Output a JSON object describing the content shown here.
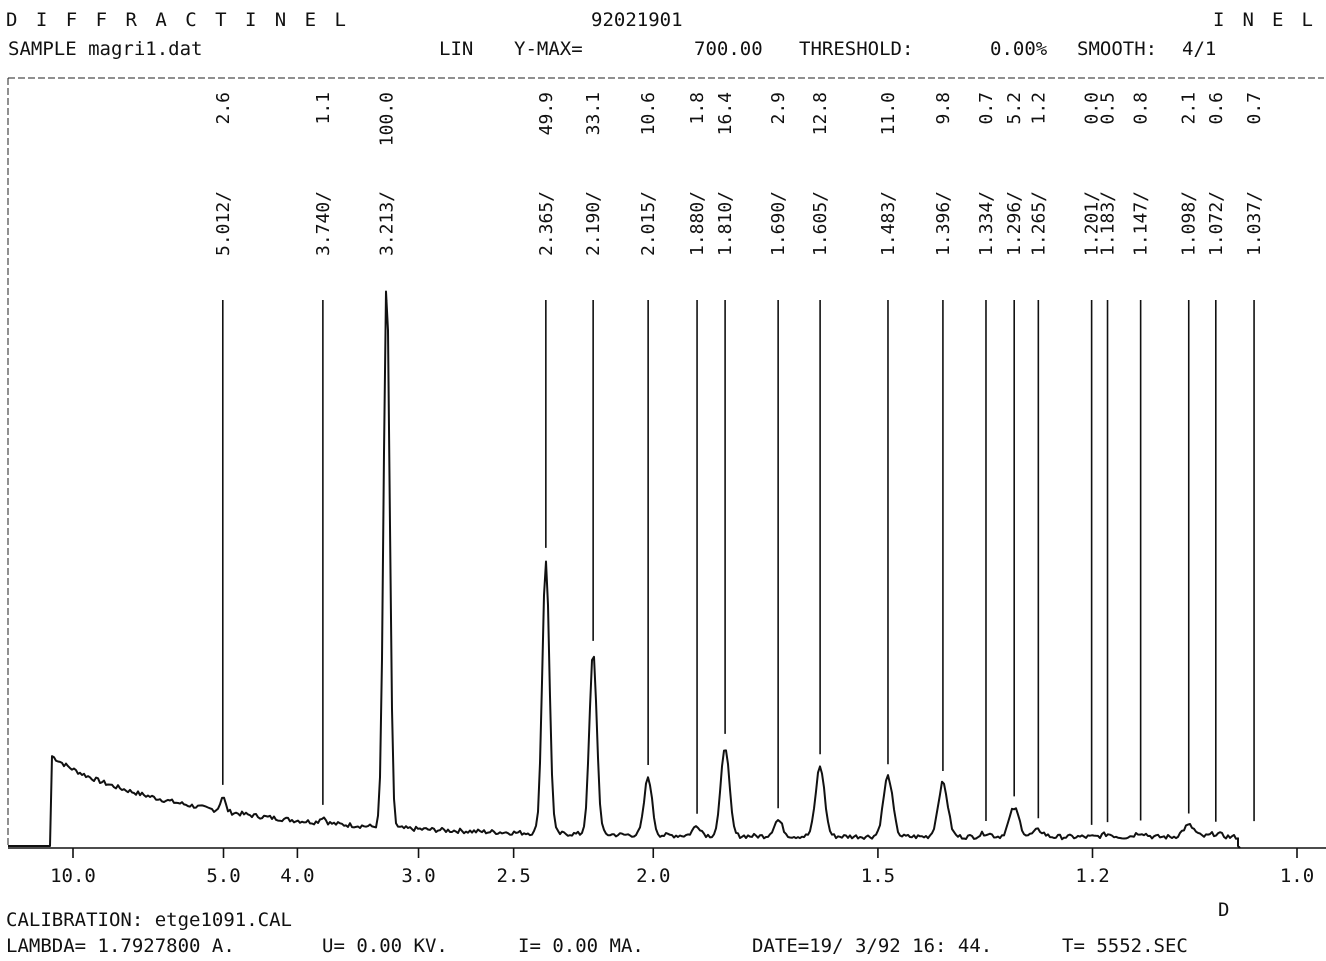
{
  "header": {
    "brand_left": "DIFFRACTINEL",
    "run_id": "92021901",
    "brand_right": "INEL",
    "sample": "SAMPLE magri1.dat",
    "scale": "LIN",
    "ymax_label": "Y-MAX=",
    "ymax_value": "700.00",
    "threshold_label": "THRESHOLD:",
    "threshold_value": "0.00%",
    "smooth_label": "SMOOTH:",
    "smooth_value": "4/1"
  },
  "footer": {
    "calibration": "CALIBRATION: etge1091.CAL",
    "lambda": "LAMBDA=  1.7927800 A.",
    "voltage": "U=   0.00 KV.",
    "current": "I=   0.00 MA.",
    "date": "DATE=19/ 3/92 16: 44.",
    "time": "T=     5552.SEC"
  },
  "chart_data": {
    "type": "line",
    "xlabel": "D",
    "ylabel": "",
    "x_scale": "reciprocal d-spacing (decreasing d to the right)",
    "xlim": [
      11.2,
      1.0
    ],
    "ylim": [
      0,
      700
    ],
    "grid": false,
    "x_ticks": [
      "10.0",
      "5.0",
      "4.0",
      "3.0",
      "2.5",
      "2.0",
      "1.5",
      "1.2",
      "1.0"
    ],
    "x_tick_values": [
      10.0,
      5.0,
      4.0,
      3.0,
      2.5,
      2.0,
      1.5,
      1.2,
      1.0
    ],
    "peaks": [
      {
        "d": "5.012",
        "i": "2.6"
      },
      {
        "d": "3.740",
        "i": "1.1"
      },
      {
        "d": "3.213",
        "i": "100.0"
      },
      {
        "d": "2.365",
        "i": "49.9"
      },
      {
        "d": "2.190",
        "i": "33.1"
      },
      {
        "d": "2.015",
        "i": "10.6"
      },
      {
        "d": "1.880",
        "i": "1.8"
      },
      {
        "d": "1.810",
        "i": "16.4"
      },
      {
        "d": "1.690",
        "i": "2.9"
      },
      {
        "d": "1.605",
        "i": "12.8"
      },
      {
        "d": "1.483",
        "i": "11.0"
      },
      {
        "d": "1.396",
        "i": "9.8"
      },
      {
        "d": "1.334",
        "i": "0.7"
      },
      {
        "d": "1.296",
        "i": "5.2"
      },
      {
        "d": "1.265",
        "i": "1.2"
      },
      {
        "d": "1.201",
        "i": "0.0"
      },
      {
        "d": "1.183",
        "i": "0.5"
      },
      {
        "d": "1.147",
        "i": "0.8"
      },
      {
        "d": "1.098",
        "i": "2.1"
      },
      {
        "d": "1.072",
        "i": "0.6"
      },
      {
        "d": "1.037",
        "i": "0.7"
      }
    ]
  }
}
